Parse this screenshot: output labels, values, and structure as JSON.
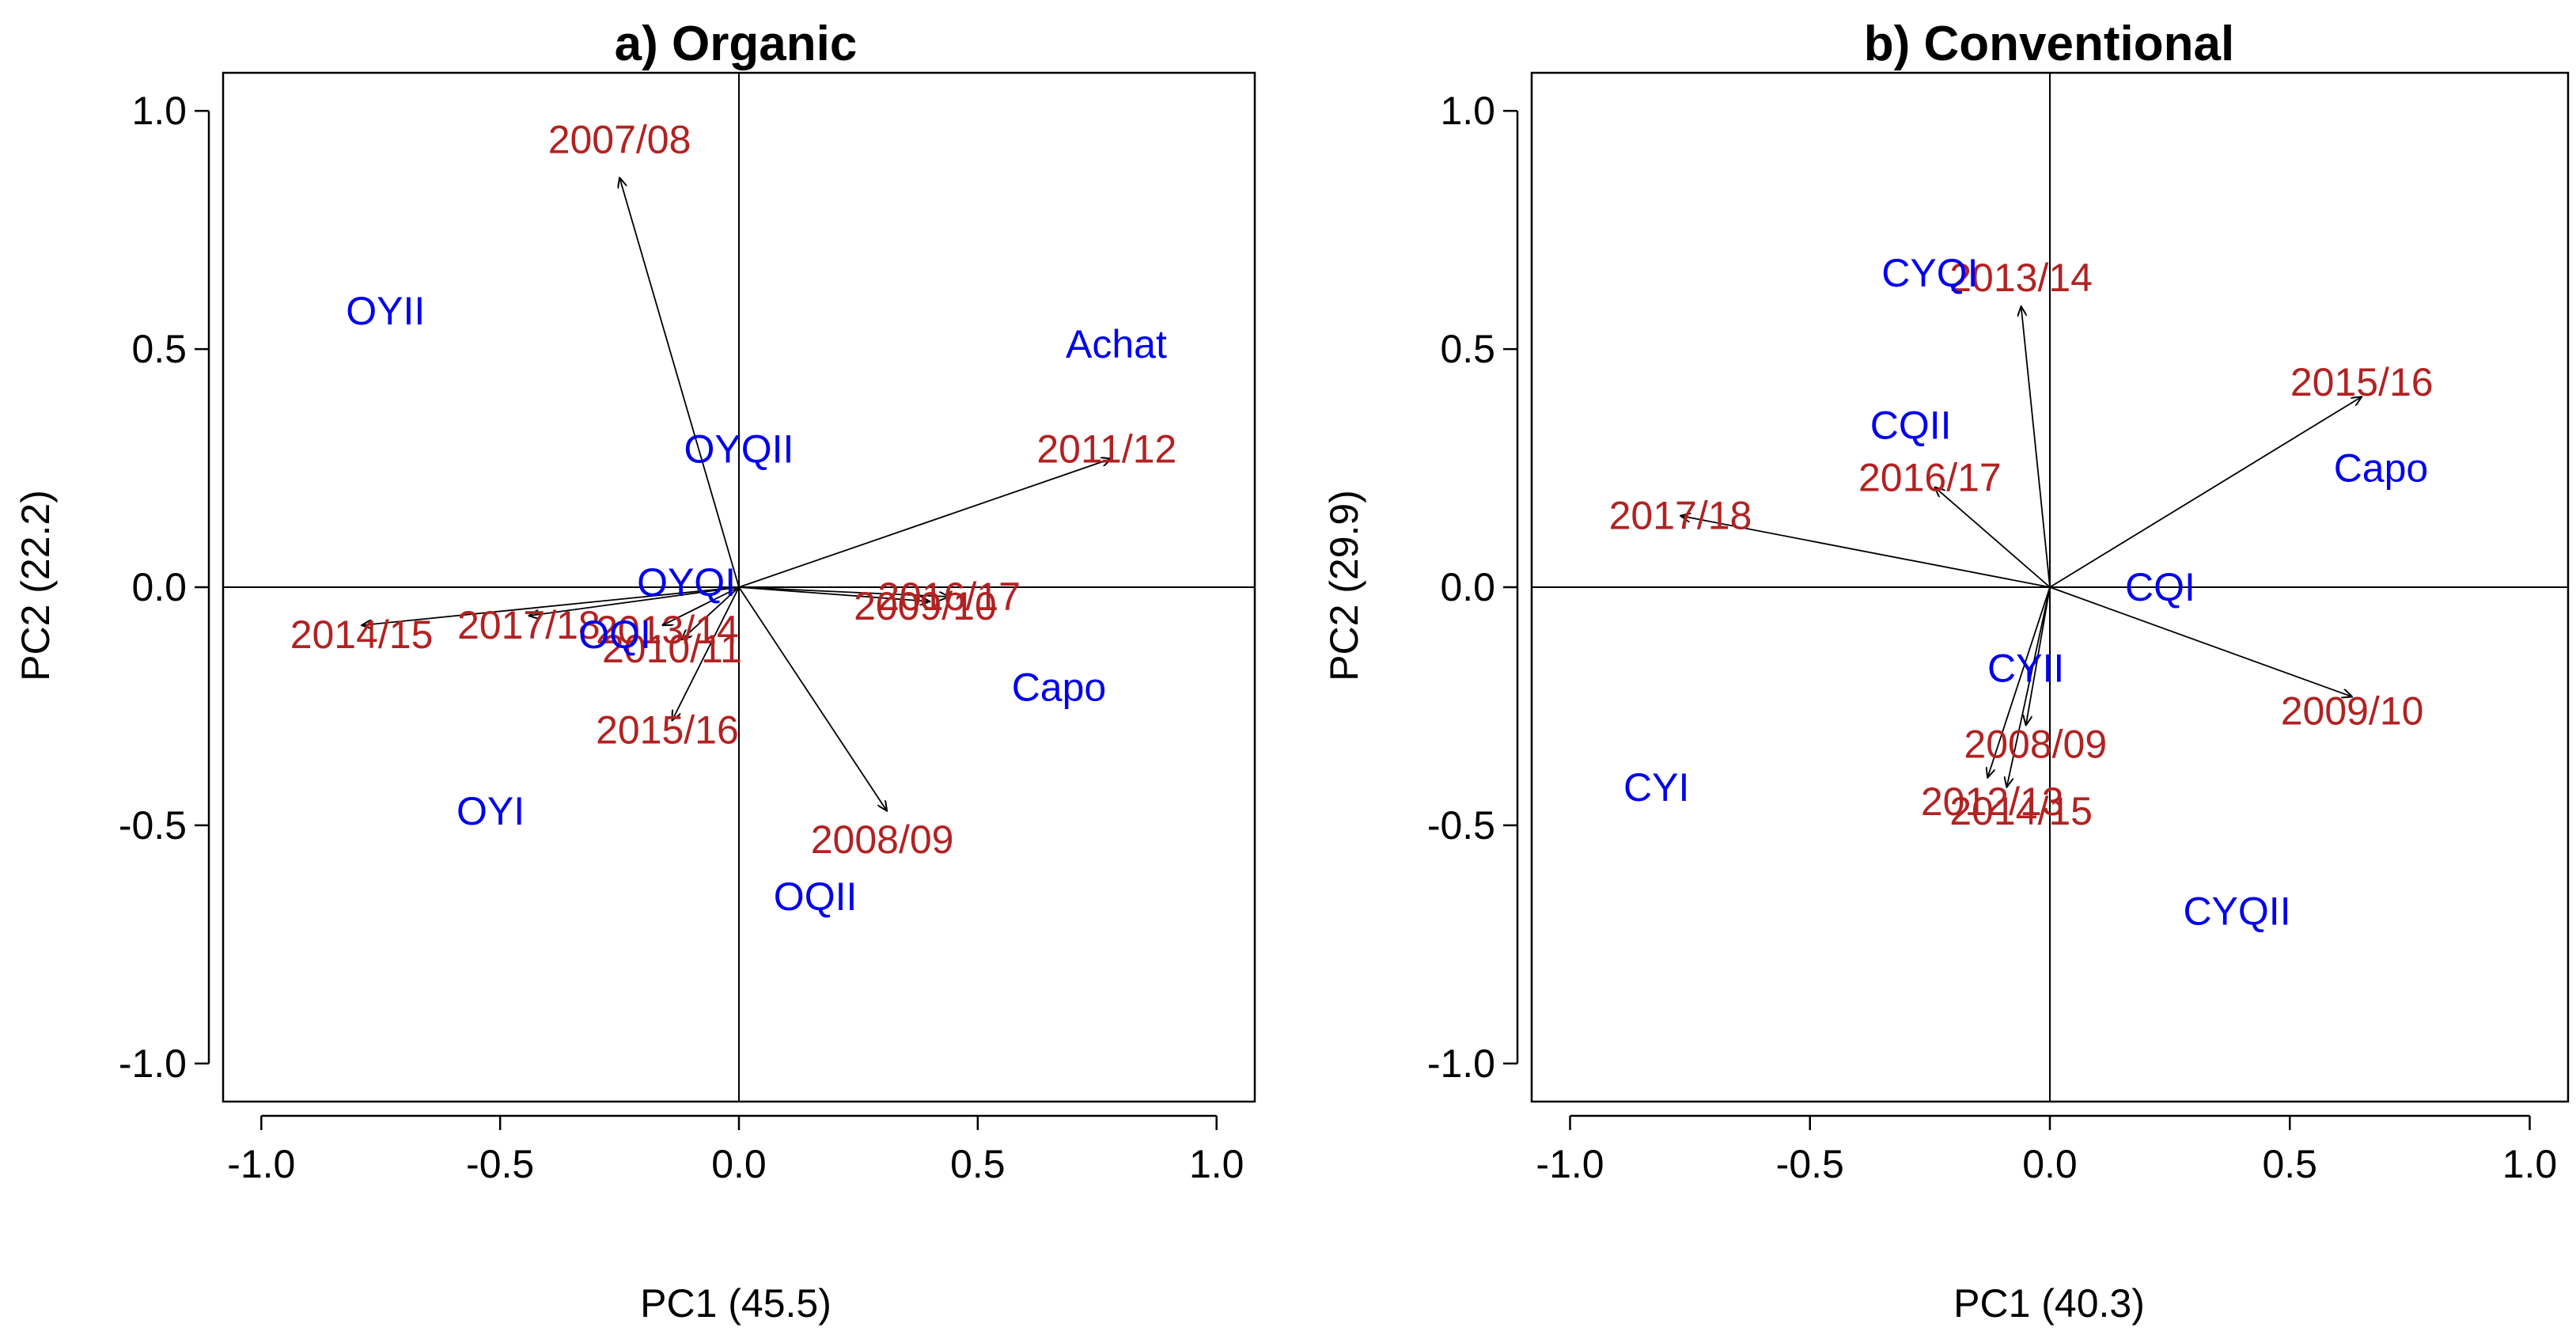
{
  "colors": {
    "observation": "#0000ee",
    "variable": "#b22222",
    "axis": "#000000"
  },
  "chart_data": [
    {
      "type": "scatter",
      "subtype": "biplot",
      "title": "a) Organic",
      "xlabel": "PC1 (45.5)",
      "ylabel": "PC2 (22.2)",
      "xlim": [
        -1.08,
        1.08
      ],
      "ylim": [
        -1.08,
        1.08
      ],
      "xticks": [
        -1.0,
        -0.5,
        0.0,
        0.5,
        1.0
      ],
      "yticks": [
        -1.0,
        -0.5,
        0.0,
        0.5,
        1.0
      ],
      "xtick_labels": [
        "-1.0",
        "-0.5",
        "0.0",
        "0.5",
        "1.0"
      ],
      "ytick_labels": [
        "-1.0",
        "-0.5",
        "0.0",
        "0.5",
        "1.0"
      ],
      "reference_lines": [
        {
          "axis": "x",
          "value": 0
        },
        {
          "axis": "y",
          "value": 0
        }
      ],
      "observations": [
        {
          "label": "OYII",
          "x": -0.74,
          "y": 0.58
        },
        {
          "label": "Achat",
          "x": 0.79,
          "y": 0.51
        },
        {
          "label": "OYQII",
          "x": 0.0,
          "y": 0.29
        },
        {
          "label": "OYQI",
          "x": -0.11,
          "y": 0.01
        },
        {
          "label": "OQI",
          "x": -0.26,
          "y": -0.1
        },
        {
          "label": "Capo",
          "x": 0.67,
          "y": -0.21
        },
        {
          "label": "OYI",
          "x": -0.52,
          "y": -0.47
        },
        {
          "label": "OQII",
          "x": 0.16,
          "y": -0.65
        }
      ],
      "variables": [
        {
          "label": "2007/08",
          "x": -0.25,
          "y": 0.86,
          "label_x": -0.25,
          "label_y": 0.94
        },
        {
          "label": "2011/12",
          "x": 0.78,
          "y": 0.27,
          "label_x": 0.77,
          "label_y": 0.29
        },
        {
          "label": "2016/17",
          "x": 0.44,
          "y": -0.02,
          "label_x": 0.44,
          "label_y": -0.02
        },
        {
          "label": "2009/10",
          "x": 0.4,
          "y": -0.03,
          "label_x": 0.39,
          "label_y": -0.04
        },
        {
          "label": "2014/15",
          "x": -0.79,
          "y": -0.08,
          "label_x": -0.79,
          "label_y": -0.1
        },
        {
          "label": "2017/18",
          "x": -0.44,
          "y": -0.06,
          "label_x": -0.44,
          "label_y": -0.08
        },
        {
          "label": "2013/14",
          "x": -0.16,
          "y": -0.08,
          "label_x": -0.15,
          "label_y": -0.09
        },
        {
          "label": "2010/11",
          "x": -0.12,
          "y": -0.11,
          "label_x": -0.14,
          "label_y": -0.13
        },
        {
          "label": "2015/16",
          "x": -0.14,
          "y": -0.28,
          "label_x": -0.15,
          "label_y": -0.3
        },
        {
          "label": "2008/09",
          "x": 0.31,
          "y": -0.47,
          "label_x": 0.3,
          "label_y": -0.53
        }
      ]
    },
    {
      "type": "scatter",
      "subtype": "biplot",
      "title": "b) Conventional",
      "xlabel": "PC1 (40.3)",
      "ylabel": "PC2 (29.9)",
      "xlim": [
        -1.08,
        1.08
      ],
      "ylim": [
        -1.08,
        1.08
      ],
      "xticks": [
        -1.0,
        -0.5,
        0.0,
        0.5,
        1.0
      ],
      "yticks": [
        -1.0,
        -0.5,
        0.0,
        0.5,
        1.0
      ],
      "xtick_labels": [
        "-1.0",
        "-0.5",
        "0.0",
        "0.5",
        "1.0"
      ],
      "ytick_labels": [
        "-1.0",
        "-0.5",
        "0.0",
        "0.5",
        "1.0"
      ],
      "reference_lines": [
        {
          "axis": "x",
          "value": 0
        },
        {
          "axis": "y",
          "value": 0
        }
      ],
      "observations": [
        {
          "label": "CYQI",
          "x": -0.25,
          "y": 0.66
        },
        {
          "label": "CQII",
          "x": -0.29,
          "y": 0.34
        },
        {
          "label": "Capo",
          "x": 0.69,
          "y": 0.25
        },
        {
          "label": "CQI",
          "x": 0.23,
          "y": 0.0
        },
        {
          "label": "CYII",
          "x": -0.05,
          "y": -0.17
        },
        {
          "label": "CYI",
          "x": -0.82,
          "y": -0.42
        },
        {
          "label": "CYQII",
          "x": 0.39,
          "y": -0.68
        }
      ],
      "variables": [
        {
          "label": "2013/14",
          "x": -0.06,
          "y": 0.59,
          "label_x": -0.06,
          "label_y": 0.65
        },
        {
          "label": "2015/16",
          "x": 0.65,
          "y": 0.4,
          "label_x": 0.65,
          "label_y": 0.43
        },
        {
          "label": "2016/17",
          "x": -0.24,
          "y": 0.21,
          "label_x": -0.25,
          "label_y": 0.23
        },
        {
          "label": "2017/18",
          "x": -0.77,
          "y": 0.15,
          "label_x": -0.77,
          "label_y": 0.15
        },
        {
          "label": "2009/10",
          "x": 0.63,
          "y": -0.23,
          "label_x": 0.63,
          "label_y": -0.26
        },
        {
          "label": "2008/09",
          "x": -0.05,
          "y": -0.29,
          "label_x": -0.03,
          "label_y": -0.33
        },
        {
          "label": "2012/13",
          "x": -0.13,
          "y": -0.4,
          "label_x": -0.12,
          "label_y": -0.45
        },
        {
          "label": "2014/15",
          "x": -0.09,
          "y": -0.42,
          "label_x": -0.06,
          "label_y": -0.47
        }
      ]
    }
  ]
}
